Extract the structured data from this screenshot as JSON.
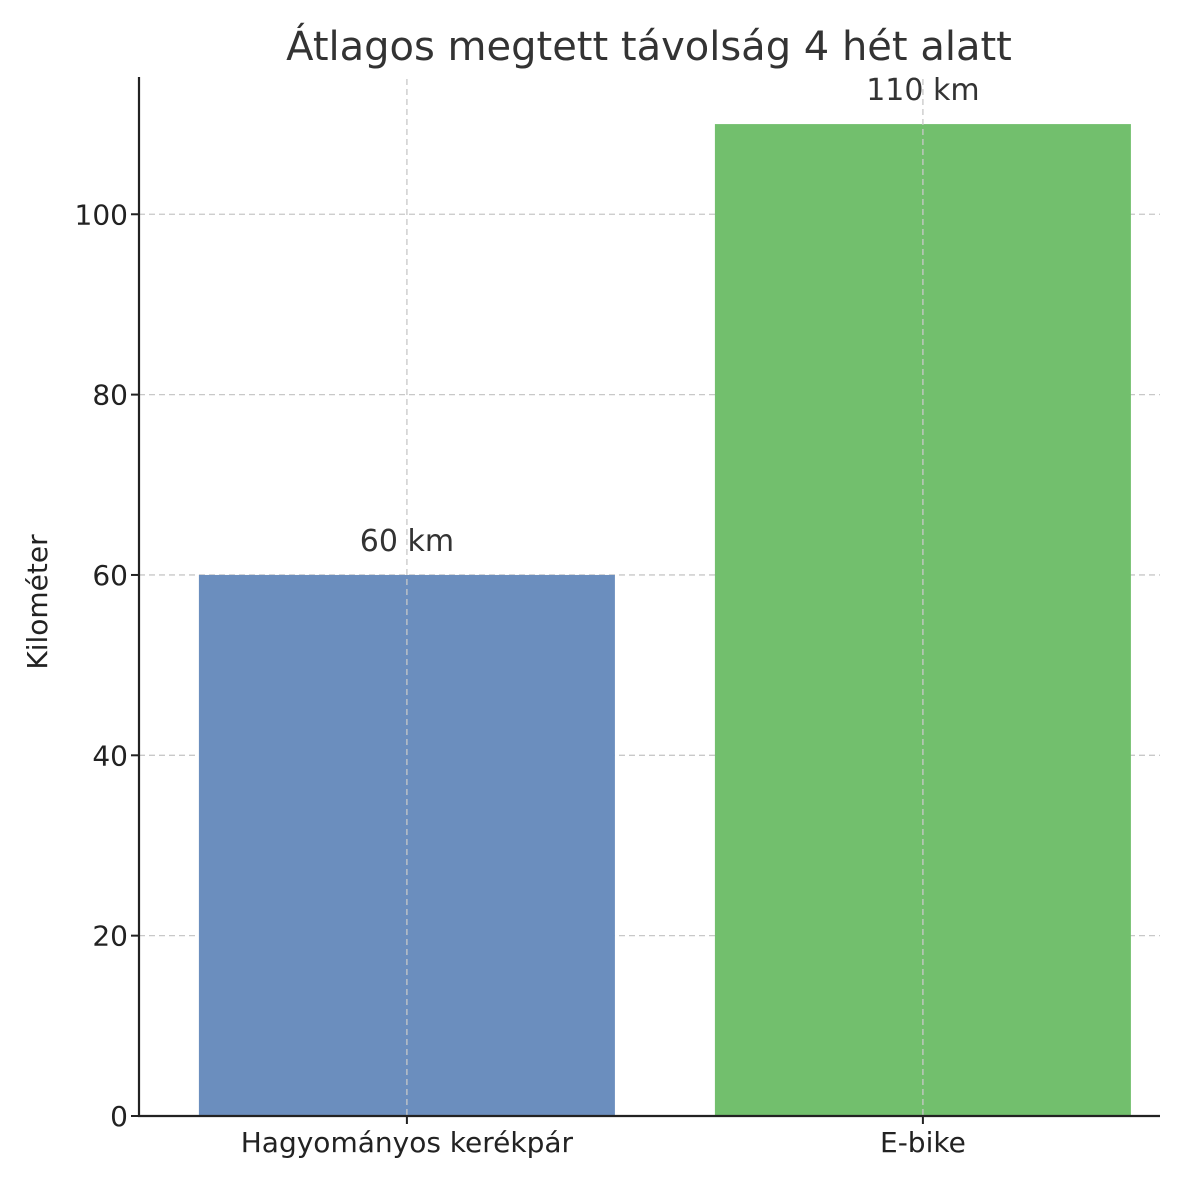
{
  "chart_data": {
    "type": "bar",
    "title": "Átlagos megtett távolság 4 hét alatt",
    "xlabel": "",
    "ylabel": "Kilométer",
    "categories": [
      "Hagyományos kerékpár",
      "E-bike"
    ],
    "values": [
      60,
      110
    ],
    "data_labels": [
      "60 km",
      "110 km"
    ],
    "colors": [
      "#6b8ebe",
      "#72bf6d"
    ],
    "ylim": [
      0,
      115
    ],
    "yticks": [
      0,
      20,
      40,
      60,
      80,
      100
    ],
    "ytick_labels": [
      "0",
      "20",
      "40",
      "60",
      "80",
      "100"
    ],
    "grid": true
  }
}
